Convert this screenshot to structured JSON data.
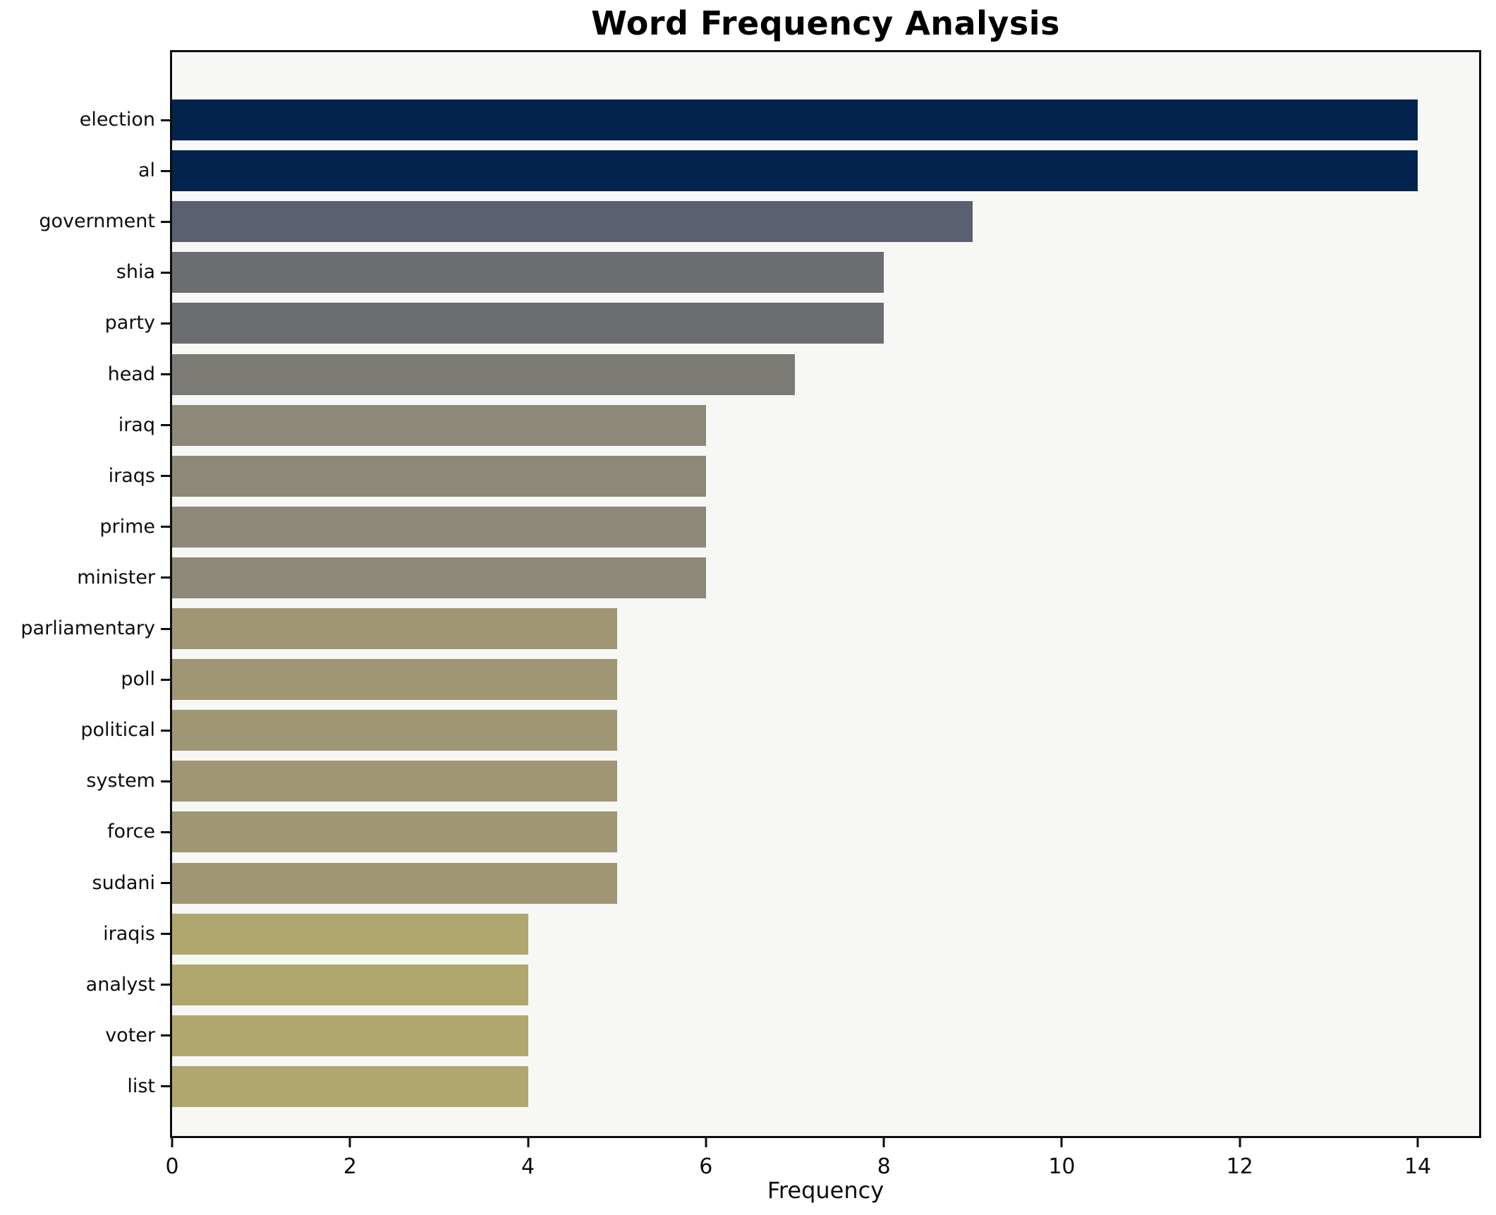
{
  "figure": {
    "background": "#ffffff",
    "plot_background": "#f7f7f5",
    "spine_color": "#0d0d0d",
    "text_color": "#0d0d0d"
  },
  "chart_data": {
    "type": "bar",
    "orientation": "horizontal",
    "title": "Word Frequency Analysis",
    "xlabel": "Frequency",
    "ylabel": "",
    "categories": [
      "election",
      "al",
      "government",
      "shia",
      "party",
      "head",
      "iraq",
      "iraqs",
      "prime",
      "minister",
      "parliamentary",
      "poll",
      "political",
      "system",
      "force",
      "sudani",
      "iraqis",
      "analyst",
      "voter",
      "list"
    ],
    "values": [
      14,
      14,
      9,
      8,
      8,
      7,
      6,
      6,
      6,
      6,
      5,
      5,
      5,
      5,
      5,
      5,
      4,
      4,
      4,
      4
    ],
    "bar_colors": [
      "#03234e",
      "#03234e",
      "#5a6070",
      "#6b6d71",
      "#6b6d71",
      "#7b7a74",
      "#8d8877",
      "#8d8877",
      "#8d8877",
      "#8d8877",
      "#9f9674",
      "#9f9674",
      "#9f9674",
      "#9f9674",
      "#9f9674",
      "#9f9674",
      "#b0a76e",
      "#b0a76e",
      "#b0a76e",
      "#b0a76e"
    ],
    "xticks": [
      0,
      2,
      4,
      6,
      8,
      10,
      12,
      14
    ],
    "xlim": [
      0,
      14.69
    ],
    "grid": false,
    "legend": false
  }
}
